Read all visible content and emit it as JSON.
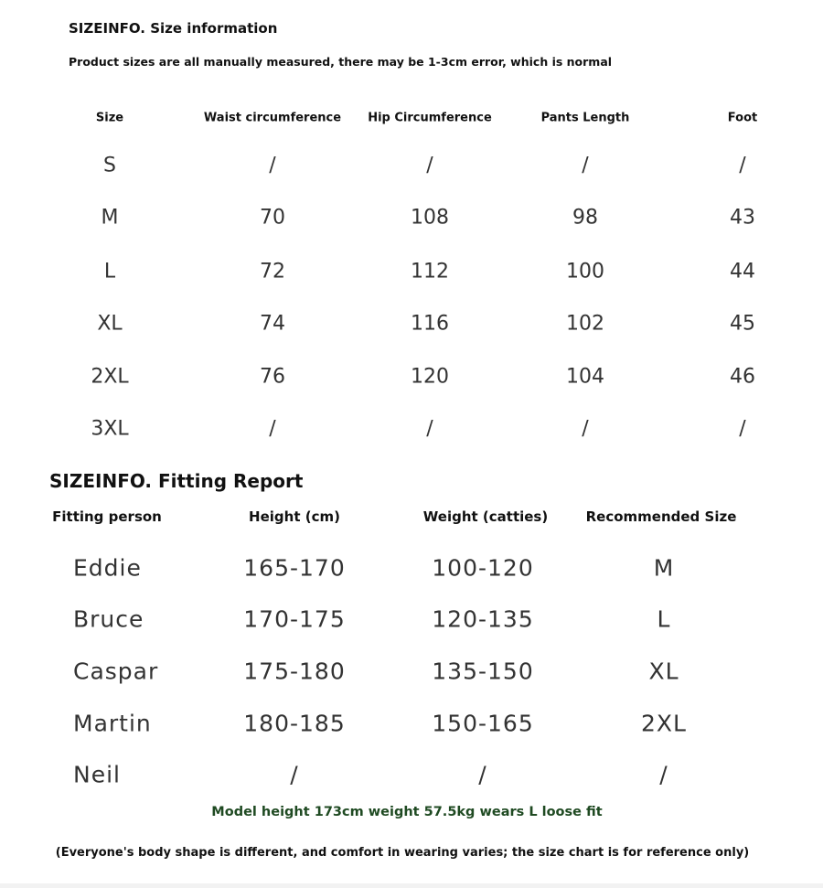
{
  "size_info": {
    "title": "SIZEINFO. Size information",
    "note": "Product sizes are all manually measured, there may be 1-3cm error, which is normal",
    "headers": [
      "Size",
      "Waist circumference",
      "Hip Circumference",
      "Pants Length",
      "Foot"
    ],
    "rows": [
      [
        "S",
        "/",
        "/",
        "/",
        "/"
      ],
      [
        "M",
        "70",
        "108",
        "98",
        "43"
      ],
      [
        "L",
        "72",
        "112",
        "100",
        "44"
      ],
      [
        "XL",
        "74",
        "116",
        "102",
        "45"
      ],
      [
        "2XL",
        "76",
        "120",
        "104",
        "46"
      ],
      [
        "3XL",
        "/",
        "/",
        "/",
        "/"
      ]
    ]
  },
  "fitting_report": {
    "title": "SIZEINFO. Fitting Report",
    "headers": [
      "Fitting person",
      "Height (cm)",
      "Weight (catties)",
      "Recommended Size"
    ],
    "rows": [
      [
        "Eddie",
        "165-170",
        "100-120",
        "M"
      ],
      [
        "Bruce",
        "170-175",
        "120-135",
        "L"
      ],
      [
        "Caspar",
        "175-180",
        "135-150",
        "XL"
      ],
      [
        "Martin",
        "180-185",
        "150-165",
        "2XL"
      ],
      [
        "Neil",
        "/",
        "/",
        "/"
      ]
    ]
  },
  "model_note": "Model height 173cm weight 57.5kg wears L loose fit",
  "disclaimer": "(Everyone's body shape is different, and comfort in wearing varies; the size chart is for reference only)",
  "colors": {
    "model_note": "#1f4a22"
  }
}
